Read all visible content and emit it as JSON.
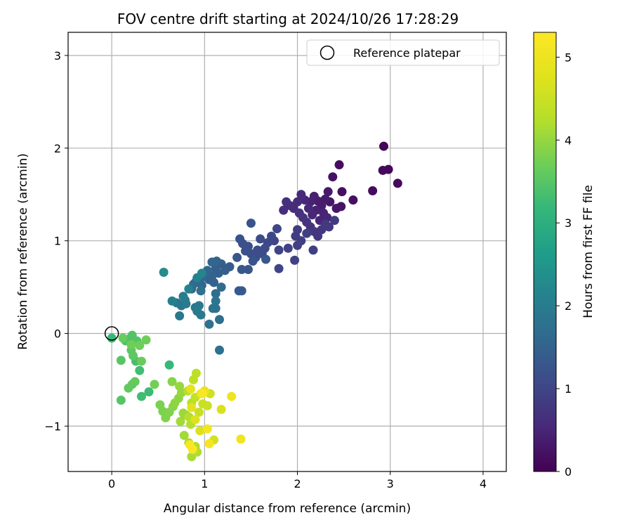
{
  "chart_data": {
    "type": "scatter",
    "title": "FOV centre drift starting at 2024/10/26 17:28:29",
    "xlabel": "Angular distance from reference (arcmin)",
    "ylabel": "Rotation from reference (arcmin)",
    "xlim": [
      -0.47,
      4.25
    ],
    "ylim": [
      -1.49,
      3.25
    ],
    "xticks": [
      0,
      1,
      2,
      3,
      4
    ],
    "yticks": [
      -1,
      0,
      1,
      2,
      3
    ],
    "xtick_labels": [
      "0",
      "1",
      "2",
      "3",
      "4"
    ],
    "ytick_labels": [
      "−1",
      "0",
      "1",
      "2",
      "3"
    ],
    "grid": true,
    "legend": {
      "position": "top-right",
      "entries": [
        "Reference platepar"
      ]
    },
    "reference_point": {
      "label": "Reference platepar",
      "x": 0,
      "y": 0,
      "marker": "open-circle"
    },
    "colorbar": {
      "label": "Hours from first FF file",
      "colormap": "viridis",
      "range": [
        0,
        5.3
      ],
      "ticks": [
        0,
        1,
        2,
        3,
        4,
        5
      ],
      "tick_labels": [
        "0",
        "1",
        "2",
        "3",
        "4",
        "5"
      ]
    },
    "series": [
      {
        "color_by": "hours_from_first_ff",
        "points": [
          {
            "x": 2.93,
            "y": 2.02,
            "c": 0.05
          },
          {
            "x": 2.98,
            "y": 1.77,
            "c": 0.08
          },
          {
            "x": 2.92,
            "y": 1.76,
            "c": 0.1
          },
          {
            "x": 3.08,
            "y": 1.62,
            "c": 0.12
          },
          {
            "x": 2.45,
            "y": 1.82,
            "c": 0.15
          },
          {
            "x": 2.81,
            "y": 1.54,
            "c": 0.15
          },
          {
            "x": 2.6,
            "y": 1.44,
            "c": 0.2
          },
          {
            "x": 2.48,
            "y": 1.53,
            "c": 0.2
          },
          {
            "x": 2.38,
            "y": 1.69,
            "c": 0.22
          },
          {
            "x": 2.47,
            "y": 1.37,
            "c": 0.25
          },
          {
            "x": 2.42,
            "y": 1.35,
            "c": 0.3
          },
          {
            "x": 2.35,
            "y": 1.42,
            "c": 0.3
          },
          {
            "x": 2.33,
            "y": 1.53,
            "c": 0.32
          },
          {
            "x": 2.3,
            "y": 1.45,
            "c": 0.35
          },
          {
            "x": 2.26,
            "y": 1.38,
            "c": 0.38
          },
          {
            "x": 2.22,
            "y": 1.43,
            "c": 0.4
          },
          {
            "x": 2.18,
            "y": 1.48,
            "c": 0.42
          },
          {
            "x": 2.14,
            "y": 1.42,
            "c": 0.45
          },
          {
            "x": 2.2,
            "y": 1.33,
            "c": 0.45
          },
          {
            "x": 2.28,
            "y": 1.3,
            "c": 0.48
          },
          {
            "x": 2.32,
            "y": 1.25,
            "c": 0.5
          },
          {
            "x": 2.24,
            "y": 1.22,
            "c": 0.5
          },
          {
            "x": 2.16,
            "y": 1.28,
            "c": 0.52
          },
          {
            "x": 2.12,
            "y": 1.35,
            "c": 0.55
          },
          {
            "x": 2.08,
            "y": 1.44,
            "c": 0.55
          },
          {
            "x": 2.04,
            "y": 1.5,
            "c": 0.58
          },
          {
            "x": 2.0,
            "y": 1.42,
            "c": 0.6
          },
          {
            "x": 1.96,
            "y": 1.35,
            "c": 0.6
          },
          {
            "x": 1.92,
            "y": 1.38,
            "c": 0.62
          },
          {
            "x": 1.88,
            "y": 1.42,
            "c": 0.65
          },
          {
            "x": 1.85,
            "y": 1.33,
            "c": 0.65
          },
          {
            "x": 2.02,
            "y": 1.3,
            "c": 0.68
          },
          {
            "x": 2.06,
            "y": 1.25,
            "c": 0.7
          },
          {
            "x": 2.1,
            "y": 1.2,
            "c": 0.7
          },
          {
            "x": 2.14,
            "y": 1.15,
            "c": 0.72
          },
          {
            "x": 2.18,
            "y": 1.1,
            "c": 0.75
          },
          {
            "x": 2.22,
            "y": 1.05,
            "c": 0.75
          },
          {
            "x": 2.26,
            "y": 1.12,
            "c": 0.78
          },
          {
            "x": 2.3,
            "y": 1.18,
            "c": 0.8
          },
          {
            "x": 2.34,
            "y": 1.15,
            "c": 0.8
          },
          {
            "x": 2.4,
            "y": 1.22,
            "c": 0.82
          },
          {
            "x": 2.0,
            "y": 1.12,
            "c": 0.85
          },
          {
            "x": 1.98,
            "y": 1.05,
            "c": 0.85
          },
          {
            "x": 2.04,
            "y": 1.0,
            "c": 0.88
          },
          {
            "x": 2.1,
            "y": 1.08,
            "c": 0.9
          },
          {
            "x": 2.17,
            "y": 0.9,
            "c": 0.9
          },
          {
            "x": 2.0,
            "y": 0.95,
            "c": 0.92
          },
          {
            "x": 1.97,
            "y": 0.79,
            "c": 0.95
          },
          {
            "x": 1.9,
            "y": 0.92,
            "c": 0.95
          },
          {
            "x": 1.8,
            "y": 0.9,
            "c": 0.98
          },
          {
            "x": 1.8,
            "y": 0.7,
            "c": 1.0
          },
          {
            "x": 1.75,
            "y": 1.0,
            "c": 1.0
          },
          {
            "x": 1.78,
            "y": 1.13,
            "c": 1.02
          },
          {
            "x": 1.72,
            "y": 1.05,
            "c": 1.05
          },
          {
            "x": 1.68,
            "y": 0.98,
            "c": 1.05
          },
          {
            "x": 1.65,
            "y": 0.92,
            "c": 1.08
          },
          {
            "x": 1.6,
            "y": 1.02,
            "c": 1.1
          },
          {
            "x": 1.62,
            "y": 0.86,
            "c": 1.1
          },
          {
            "x": 1.57,
            "y": 0.9,
            "c": 1.12
          },
          {
            "x": 1.55,
            "y": 0.82,
            "c": 1.15
          },
          {
            "x": 1.5,
            "y": 0.86,
            "c": 1.15
          },
          {
            "x": 1.47,
            "y": 0.94,
            "c": 1.18
          },
          {
            "x": 1.44,
            "y": 0.89,
            "c": 1.2
          },
          {
            "x": 1.41,
            "y": 0.97,
            "c": 1.2
          },
          {
            "x": 1.38,
            "y": 1.02,
            "c": 1.22
          },
          {
            "x": 1.5,
            "y": 1.19,
            "c": 1.25
          },
          {
            "x": 1.52,
            "y": 0.78,
            "c": 1.25
          },
          {
            "x": 1.47,
            "y": 0.69,
            "c": 1.28
          },
          {
            "x": 1.4,
            "y": 0.69,
            "c": 1.3
          },
          {
            "x": 1.66,
            "y": 0.8,
            "c": 1.3
          },
          {
            "x": 1.35,
            "y": 0.82,
            "c": 1.32
          },
          {
            "x": 1.37,
            "y": 0.46,
            "c": 1.35
          },
          {
            "x": 1.4,
            "y": 0.46,
            "c": 1.35
          },
          {
            "x": 1.27,
            "y": 0.72,
            "c": 1.38
          },
          {
            "x": 1.22,
            "y": 0.68,
            "c": 1.4
          },
          {
            "x": 1.18,
            "y": 0.75,
            "c": 1.42
          },
          {
            "x": 1.15,
            "y": 0.65,
            "c": 1.45
          },
          {
            "x": 1.12,
            "y": 0.7,
            "c": 1.45
          },
          {
            "x": 1.08,
            "y": 0.62,
            "c": 1.48
          },
          {
            "x": 1.05,
            "y": 0.58,
            "c": 1.5
          },
          {
            "x": 1.1,
            "y": 0.55,
            "c": 1.5
          },
          {
            "x": 1.13,
            "y": 0.78,
            "c": 1.52
          },
          {
            "x": 1.08,
            "y": 0.77,
            "c": 1.55
          },
          {
            "x": 1.03,
            "y": 0.68,
            "c": 1.55
          },
          {
            "x": 1.0,
            "y": 0.62,
            "c": 1.58
          },
          {
            "x": 0.97,
            "y": 0.52,
            "c": 1.6
          },
          {
            "x": 0.95,
            "y": 0.58,
            "c": 1.62
          },
          {
            "x": 0.9,
            "y": 0.55,
            "c": 1.65
          },
          {
            "x": 0.86,
            "y": 0.48,
            "c": 1.65
          },
          {
            "x": 0.88,
            "y": 0.53,
            "c": 1.68
          },
          {
            "x": 0.92,
            "y": 0.6,
            "c": 1.7
          },
          {
            "x": 1.18,
            "y": 0.5,
            "c": 1.7
          },
          {
            "x": 1.12,
            "y": 0.43,
            "c": 1.72
          },
          {
            "x": 0.96,
            "y": 0.46,
            "c": 1.75
          },
          {
            "x": 1.16,
            "y": 0.15,
            "c": 1.75
          },
          {
            "x": 1.16,
            "y": -0.18,
            "c": 1.78
          },
          {
            "x": 1.05,
            "y": 0.1,
            "c": 1.8
          },
          {
            "x": 1.12,
            "y": 0.27,
            "c": 1.8
          },
          {
            "x": 1.09,
            "y": 0.27,
            "c": 1.82
          },
          {
            "x": 1.12,
            "y": 0.35,
            "c": 1.85
          },
          {
            "x": 0.75,
            "y": 0.3,
            "c": 1.85
          },
          {
            "x": 0.7,
            "y": 0.33,
            "c": 1.88
          },
          {
            "x": 0.73,
            "y": 0.19,
            "c": 1.9
          },
          {
            "x": 0.9,
            "y": 0.28,
            "c": 1.9
          },
          {
            "x": 0.94,
            "y": 0.3,
            "c": 1.92
          },
          {
            "x": 0.96,
            "y": 0.2,
            "c": 1.95
          },
          {
            "x": 0.92,
            "y": 0.24,
            "c": 1.95
          },
          {
            "x": 0.8,
            "y": 0.32,
            "c": 1.98
          },
          {
            "x": 0.79,
            "y": 0.36,
            "c": 2.0
          },
          {
            "x": 0.77,
            "y": 0.4,
            "c": 2.0
          },
          {
            "x": 0.65,
            "y": 0.35,
            "c": 2.05
          },
          {
            "x": 0.83,
            "y": 0.48,
            "c": 2.08
          },
          {
            "x": 0.92,
            "y": 0.6,
            "c": 2.1
          },
          {
            "x": 0.97,
            "y": 0.65,
            "c": 2.15
          },
          {
            "x": 0.56,
            "y": 0.66,
            "c": 2.3
          },
          {
            "x": 0.0,
            "y": -0.05,
            "c": 3.2
          },
          {
            "x": 0.62,
            "y": -0.34,
            "c": 3.2
          },
          {
            "x": 0.4,
            "y": -0.63,
            "c": 3.25
          },
          {
            "x": 0.32,
            "y": -0.68,
            "c": 3.3
          },
          {
            "x": 0.3,
            "y": -0.4,
            "c": 3.3
          },
          {
            "x": 0.26,
            "y": -0.3,
            "c": 3.35
          },
          {
            "x": 0.2,
            "y": -0.05,
            "c": 3.4
          },
          {
            "x": 0.15,
            "y": -0.08,
            "c": 3.4
          },
          {
            "x": 0.22,
            "y": -0.02,
            "c": 3.45
          },
          {
            "x": 0.27,
            "y": -0.08,
            "c": 3.45
          },
          {
            "x": 0.1,
            "y": -0.72,
            "c": 3.5
          },
          {
            "x": 0.1,
            "y": -0.29,
            "c": 3.5
          },
          {
            "x": 0.21,
            "y": -0.18,
            "c": 3.55
          },
          {
            "x": 0.23,
            "y": -0.24,
            "c": 3.55
          },
          {
            "x": 0.18,
            "y": -0.59,
            "c": 3.6
          },
          {
            "x": 0.22,
            "y": -0.55,
            "c": 3.6
          },
          {
            "x": 0.25,
            "y": -0.52,
            "c": 3.62
          },
          {
            "x": 0.12,
            "y": -0.05,
            "c": 3.65
          },
          {
            "x": 0.32,
            "y": -0.3,
            "c": 3.65
          },
          {
            "x": 0.37,
            "y": -0.07,
            "c": 3.7
          },
          {
            "x": 0.3,
            "y": -0.13,
            "c": 3.7
          },
          {
            "x": 0.21,
            "y": -0.12,
            "c": 3.72
          },
          {
            "x": 0.46,
            "y": -0.55,
            "c": 3.75
          },
          {
            "x": 0.52,
            "y": -0.77,
            "c": 3.8
          },
          {
            "x": 0.55,
            "y": -0.84,
            "c": 3.8
          },
          {
            "x": 0.58,
            "y": -0.91,
            "c": 3.85
          },
          {
            "x": 0.62,
            "y": -0.85,
            "c": 3.85
          },
          {
            "x": 0.66,
            "y": -0.79,
            "c": 3.9
          },
          {
            "x": 0.65,
            "y": -0.52,
            "c": 3.9
          },
          {
            "x": 0.68,
            "y": -0.75,
            "c": 3.95
          },
          {
            "x": 0.72,
            "y": -0.7,
            "c": 3.95
          },
          {
            "x": 0.75,
            "y": -0.64,
            "c": 4.0
          },
          {
            "x": 0.73,
            "y": -0.57,
            "c": 4.0
          },
          {
            "x": 0.77,
            "y": -0.86,
            "c": 4.05
          },
          {
            "x": 0.8,
            "y": -0.88,
            "c": 4.05
          },
          {
            "x": 0.74,
            "y": -0.95,
            "c": 4.1
          },
          {
            "x": 0.78,
            "y": -1.1,
            "c": 4.1
          },
          {
            "x": 0.83,
            "y": -1.18,
            "c": 4.15
          },
          {
            "x": 0.86,
            "y": -1.33,
            "c": 4.15
          },
          {
            "x": 0.92,
            "y": -1.28,
            "c": 4.2
          },
          {
            "x": 0.9,
            "y": -1.22,
            "c": 4.2
          },
          {
            "x": 0.85,
            "y": -0.98,
            "c": 4.25
          },
          {
            "x": 0.83,
            "y": -0.9,
            "c": 4.25
          },
          {
            "x": 0.86,
            "y": -0.75,
            "c": 4.3
          },
          {
            "x": 0.82,
            "y": -0.62,
            "c": 4.3
          },
          {
            "x": 0.88,
            "y": -0.5,
            "c": 4.35
          },
          {
            "x": 0.91,
            "y": -0.43,
            "c": 4.35
          },
          {
            "x": 0.9,
            "y": -0.69,
            "c": 4.4
          },
          {
            "x": 0.94,
            "y": -0.85,
            "c": 4.45
          },
          {
            "x": 0.98,
            "y": -0.76,
            "c": 4.5
          },
          {
            "x": 1.03,
            "y": -0.78,
            "c": 4.5
          },
          {
            "x": 1.06,
            "y": -0.65,
            "c": 4.55
          },
          {
            "x": 1.1,
            "y": -1.15,
            "c": 4.6
          },
          {
            "x": 1.18,
            "y": -0.82,
            "c": 4.7
          },
          {
            "x": 0.95,
            "y": -1.05,
            "c": 4.7
          },
          {
            "x": 0.9,
            "y": -0.93,
            "c": 4.75
          },
          {
            "x": 0.86,
            "y": -0.8,
            "c": 4.8
          },
          {
            "x": 0.85,
            "y": -0.6,
            "c": 4.85
          },
          {
            "x": 0.96,
            "y": -0.65,
            "c": 4.9
          },
          {
            "x": 1.0,
            "y": -0.62,
            "c": 4.95
          },
          {
            "x": 1.29,
            "y": -0.68,
            "c": 5.0
          },
          {
            "x": 1.39,
            "y": -1.14,
            "c": 5.05
          },
          {
            "x": 1.03,
            "y": -1.03,
            "c": 5.1
          },
          {
            "x": 1.05,
            "y": -1.19,
            "c": 5.15
          },
          {
            "x": 0.84,
            "y": -1.2,
            "c": 5.2
          },
          {
            "x": 0.87,
            "y": -1.25,
            "c": 5.25
          },
          {
            "x": 0.98,
            "y": -0.65,
            "c": 5.25
          }
        ]
      }
    ]
  }
}
